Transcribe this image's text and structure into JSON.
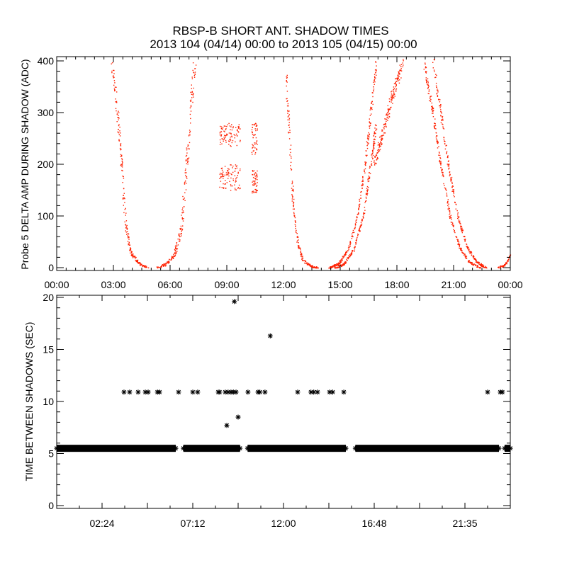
{
  "title": "RBSP-B SHORT ANT. SHADOW TIMES",
  "subtitle": "2013 104 (04/14) 00:00 to 2013 105 (04/15) 00:00",
  "colors": {
    "top_points": "#ff2000",
    "bottom_points": "#000000",
    "axes": "#000000"
  },
  "chart_data": [
    {
      "type": "scatter",
      "ylabel": "Probe 5 DELTA AMP DURING SHADOW (ADC)",
      "xlabel": "",
      "xlim": [
        0,
        24
      ],
      "ylim": [
        -10,
        410
      ],
      "x_units": "hours",
      "xticks": [
        0,
        3,
        6,
        9,
        12,
        15,
        18,
        21,
        24
      ],
      "xtick_labels": [
        "00:00",
        "03:00",
        "06:00",
        "09:00",
        "12:00",
        "15:00",
        "18:00",
        "21:00",
        "00:00"
      ],
      "yticks": [
        0,
        100,
        200,
        300,
        400
      ],
      "ytick_labels": [
        "0",
        "100",
        "200",
        "300",
        "400"
      ],
      "color": "#ff2000",
      "branches": [
        {
          "name": "descent-1",
          "points": [
            [
              2.9,
              400
            ],
            [
              3.2,
              300
            ],
            [
              3.45,
              180
            ],
            [
              3.65,
              80
            ],
            [
              3.9,
              30
            ],
            [
              4.3,
              10
            ],
            [
              4.8,
              0
            ]
          ],
          "spread": 0.12,
          "n": 220
        },
        {
          "name": "ascent-1",
          "points": [
            [
              5.3,
              0
            ],
            [
              5.8,
              8
            ],
            [
              6.2,
              25
            ],
            [
              6.55,
              70
            ],
            [
              6.8,
              170
            ],
            [
              7.05,
              300
            ],
            [
              7.3,
              400
            ]
          ],
          "spread": 0.15,
          "n": 220
        },
        {
          "name": "block-a-upper",
          "points": [
            [
              8.6,
              235
            ],
            [
              9.7,
              280
            ]
          ],
          "box": true,
          "n": 90
        },
        {
          "name": "block-a-lower",
          "points": [
            [
              8.6,
              150
            ],
            [
              9.7,
              200
            ]
          ],
          "box": true,
          "n": 90
        },
        {
          "name": "block-b-upper",
          "points": [
            [
              10.3,
              220
            ],
            [
              10.6,
              280
            ]
          ],
          "box": true,
          "n": 50
        },
        {
          "name": "block-b-lower",
          "points": [
            [
              10.3,
              145
            ],
            [
              10.6,
              190
            ]
          ],
          "box": true,
          "n": 50
        },
        {
          "name": "descent-2",
          "points": [
            [
              12.1,
              380
            ],
            [
              12.3,
              250
            ],
            [
              12.5,
              120
            ],
            [
              12.75,
              45
            ],
            [
              13.0,
              15
            ],
            [
              13.4,
              4
            ],
            [
              13.8,
              0
            ]
          ],
          "spread": 0.1,
          "n": 200
        },
        {
          "name": "ascent-2a",
          "points": [
            [
              14.4,
              0
            ],
            [
              14.9,
              8
            ],
            [
              15.4,
              35
            ],
            [
              15.9,
              100
            ],
            [
              16.3,
              200
            ],
            [
              16.6,
              300
            ],
            [
              16.9,
              400
            ]
          ],
          "spread": 0.08,
          "n": 260
        },
        {
          "name": "ascent-2b",
          "points": [
            [
              14.7,
              0
            ],
            [
              15.2,
              8
            ],
            [
              15.7,
              35
            ],
            [
              16.2,
              100
            ],
            [
              16.6,
              200
            ],
            [
              16.9,
              280
            ]
          ],
          "spread": 0.08,
          "n": 220
        },
        {
          "name": "ascent-2c",
          "points": [
            [
              16.8,
              200
            ],
            [
              17.3,
              270
            ],
            [
              17.8,
              340
            ],
            [
              18.3,
              400
            ]
          ],
          "spread": 0.15,
          "n": 200
        },
        {
          "name": "descent-3a",
          "points": [
            [
              19.4,
              400
            ],
            [
              19.9,
              300
            ],
            [
              20.3,
              200
            ],
            [
              20.8,
              100
            ],
            [
              21.3,
              40
            ],
            [
              21.8,
              12
            ],
            [
              22.4,
              0
            ]
          ],
          "spread": 0.08,
          "n": 260
        },
        {
          "name": "descent-3b",
          "points": [
            [
              19.9,
              400
            ],
            [
              20.3,
              300
            ],
            [
              20.7,
              200
            ],
            [
              21.2,
              100
            ],
            [
              21.7,
              40
            ],
            [
              22.2,
              12
            ],
            [
              22.7,
              0
            ]
          ],
          "spread": 0.08,
          "n": 260
        },
        {
          "name": "ascent-3",
          "points": [
            [
              23.3,
              0
            ],
            [
              23.7,
              5
            ],
            [
              24.0,
              25
            ]
          ],
          "spread": 0.05,
          "n": 50
        }
      ]
    },
    {
      "type": "scatter",
      "ylabel": "TIME BETWEEN SHADOWS (SEC)",
      "xlabel": "",
      "xlim": [
        0,
        24
      ],
      "ylim": [
        0,
        20
      ],
      "x_units": "hours",
      "xtick_labels": [
        "02:24",
        "07:12",
        "12:00",
        "16:48",
        "21:35"
      ],
      "xtick_label_values": [
        2.4,
        7.2,
        12.0,
        16.8,
        21.6
      ],
      "yticks": [
        0,
        5,
        10,
        15,
        20
      ],
      "ytick_labels": [
        "0",
        "5",
        "10",
        "15",
        "20"
      ],
      "marker": "asterisk",
      "color": "#000000",
      "baseline_value": 5.5,
      "baseline_intervals": [
        [
          0.0,
          6.3
        ],
        [
          6.7,
          9.7
        ],
        [
          10.1,
          15.3
        ],
        [
          15.8,
          23.4
        ],
        [
          23.7,
          24.0
        ]
      ],
      "eleven_sec_value": 10.9,
      "eleven_sec_hours": [
        3.56,
        3.86,
        4.31,
        4.69,
        4.84,
        5.33,
        5.44,
        6.45,
        7.2,
        7.46,
        8.55,
        8.62,
        8.92,
        9.07,
        9.22,
        9.35,
        9.49,
        10.12,
        10.65,
        10.75,
        11.02,
        12.75,
        13.45,
        13.6,
        13.8,
        14.44,
        14.6,
        15.19,
        22.8,
        23.47,
        23.58
      ],
      "outliers": [
        [
          9.4,
          19.6
        ],
        [
          11.3,
          16.3
        ],
        [
          9.0,
          7.7
        ],
        [
          9.6,
          8.5
        ]
      ]
    }
  ]
}
